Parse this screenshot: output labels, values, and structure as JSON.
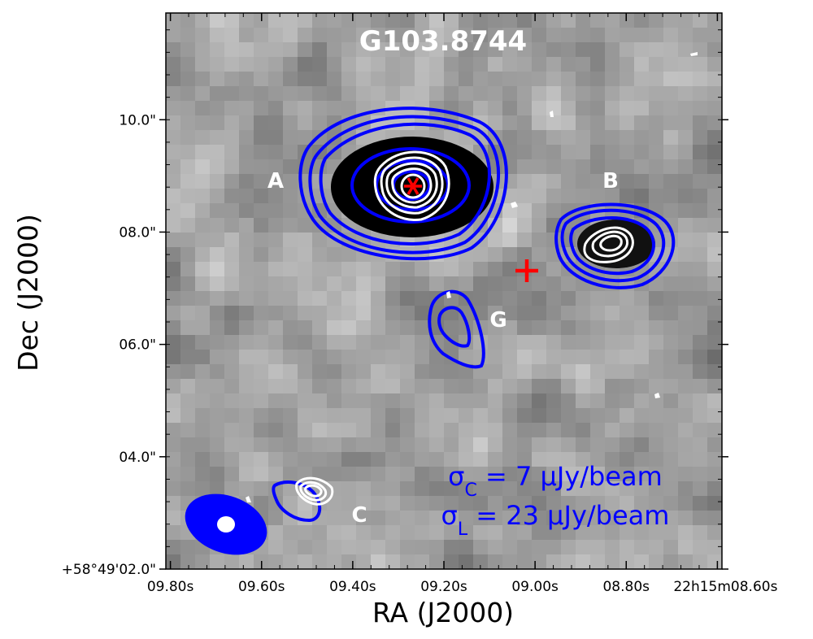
{
  "chart_data": {
    "type": "heatmap",
    "title": "G103.8744",
    "xlabel": "RA (J2000)",
    "ylabel": "Dec (J2000)",
    "xlim_sec": [
      9.81,
      8.59
    ],
    "ylim_arcsec": [
      2.0,
      11.9
    ],
    "x_ticks": [
      {
        "value": 9.8,
        "label": "09.80s"
      },
      {
        "value": 9.6,
        "label": "09.60s"
      },
      {
        "value": 9.4,
        "label": "09.40s"
      },
      {
        "value": 9.2,
        "label": "09.20s"
      },
      {
        "value": 9.0,
        "label": "09.00s"
      },
      {
        "value": 8.8,
        "label": "08.80s"
      },
      {
        "value": 8.6,
        "label": "22h15m08.60s"
      }
    ],
    "y_ticks": [
      {
        "value": 2.0,
        "label": "+58°49'02.0\""
      },
      {
        "value": 4.0,
        "label": "04.0\""
      },
      {
        "value": 6.0,
        "label": "06.0\""
      },
      {
        "value": 8.0,
        "label": "08.0\""
      },
      {
        "value": 10.0,
        "label": "10.0\""
      }
    ],
    "grid": false,
    "colormap": "gray",
    "sources": [
      {
        "label": "A",
        "ra": 9.52,
        "dec": 8.88
      },
      {
        "label": "B",
        "ra": 8.78,
        "dec": 8.88
      },
      {
        "label": "G",
        "ra": 9.06,
        "dec": 6.44
      },
      {
        "label": "C",
        "ra": 9.34,
        "dec": 2.98
      }
    ],
    "markers": [
      {
        "kind": "asterisk",
        "ra": 9.225,
        "dec": 8.88,
        "color": "#ff0000"
      },
      {
        "kind": "plus",
        "ra": 8.98,
        "dec": 7.34,
        "color": "#ff0000"
      }
    ],
    "annotations": [
      {
        "text": "σC = 7 μJy/beam",
        "main": "σ",
        "sub": "C",
        "rest": " = 7 μJy/beam"
      },
      {
        "text": "σL = 23 μJy/beam",
        "main": "σ",
        "sub": "L",
        "rest": " = 23 μJy/beam"
      }
    ],
    "contour_colors": {
      "continuum": "#0000ff",
      "line": "#ffffff"
    },
    "beams": [
      {
        "kind": "continuum",
        "color": "#0000ff",
        "ra": 9.67,
        "dec": 2.83
      },
      {
        "kind": "line",
        "color": "#ffffff",
        "ra": 9.67,
        "dec": 2.83
      }
    ]
  }
}
